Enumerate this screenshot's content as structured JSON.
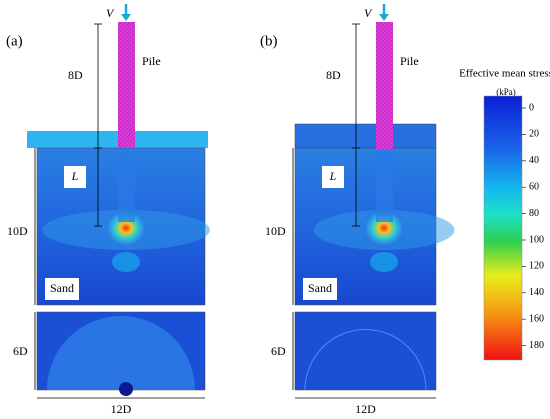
{
  "panels": [
    {
      "label": "(a)",
      "load": "V",
      "pile_length": "8D",
      "pile": "Pile",
      "embed": "L",
      "sand_depth": "10D",
      "soil": "Sand",
      "base_depth": "6D",
      "width": "12D"
    },
    {
      "label": "(b)",
      "load": "V",
      "pile_length": "8D",
      "pile": "Pile",
      "embed": "L",
      "sand_depth": "10D",
      "soil": "Sand",
      "base_depth": "6D",
      "width": "12D"
    }
  ],
  "colorbar": {
    "title": "Effective mean stress",
    "unit": "(kPa)",
    "ticks": [
      "0",
      "20",
      "40",
      "60",
      "80",
      "100",
      "120",
      "140",
      "160",
      "180"
    ]
  }
}
